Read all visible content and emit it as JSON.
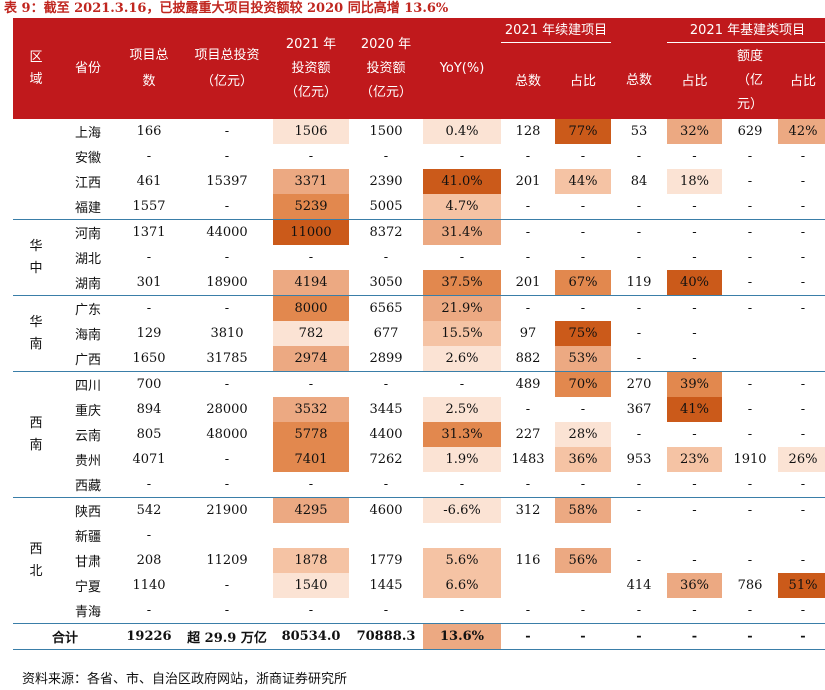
{
  "title": "表 9：截至 2021.3.16，已披露重大项目投资额较 2020 同比高增 13.6%",
  "source": "资料来源：各省、市、自治区政府网站，浙商证券研究所",
  "colors": {
    "header_bg": "#c0191c",
    "title_color": "#c0261f",
    "heat_levels": [
      "transparent",
      "#fbe3d4",
      "#f5c3a4",
      "#eca982",
      "#e2884e",
      "#cb5a1a"
    ]
  },
  "header": {
    "region": "区域",
    "province": "省份",
    "project_count": "项目总数",
    "total_investment": "项目总投资（亿元）",
    "inv_2021": "2021 年投资额（亿元）",
    "inv_2020": "2020 年投资额（亿元）",
    "yoy": "YoY(%)",
    "group_continuing": "2021 年续建项目",
    "group_infra": "2021 年基建类项目",
    "cont_count": "总数",
    "cont_share": "占比",
    "infra_count": "总数",
    "infra_share": "占比",
    "infra_amount": "额度（亿元）",
    "infra_amount_share": "占比"
  },
  "groups": [
    {
      "region": "",
      "rows": [
        {
          "province": "上海",
          "cells": [
            "166",
            "-",
            "1506",
            "1500",
            "0.4%",
            "128",
            "77%",
            "53",
            "32%",
            "629",
            "42%"
          ],
          "heat": [
            0,
            0,
            1,
            0,
            1,
            0,
            5,
            0,
            3,
            0,
            3
          ]
        },
        {
          "province": "安徽",
          "cells": [
            "-",
            "-",
            "-",
            "-",
            "-",
            "-",
            "-",
            "-",
            "-",
            "-",
            "-"
          ],
          "heat": [
            0,
            0,
            0,
            0,
            0,
            0,
            0,
            0,
            0,
            0,
            0
          ]
        },
        {
          "province": "江西",
          "cells": [
            "461",
            "15397",
            "3371",
            "2390",
            "41.0%",
            "201",
            "44%",
            "84",
            "18%",
            "-",
            "-"
          ],
          "heat": [
            0,
            0,
            3,
            0,
            5,
            0,
            2,
            0,
            1,
            0,
            0
          ]
        },
        {
          "province": "福建",
          "cells": [
            "1557",
            "-",
            "5239",
            "5005",
            "4.7%",
            "-",
            "-",
            "-",
            "-",
            "-",
            "-"
          ],
          "heat": [
            0,
            0,
            4,
            0,
            2,
            0,
            0,
            0,
            0,
            0,
            0
          ]
        }
      ]
    },
    {
      "region": "华中",
      "rows": [
        {
          "province": "河南",
          "cells": [
            "1371",
            "44000",
            "11000",
            "8372",
            "31.4%",
            "-",
            "-",
            "-",
            "-",
            "-",
            "-"
          ],
          "heat": [
            0,
            0,
            5,
            0,
            3,
            0,
            0,
            0,
            0,
            0,
            0
          ]
        },
        {
          "province": "湖北",
          "cells": [
            "-",
            "-",
            "-",
            "-",
            "-",
            "-",
            "-",
            "-",
            "-",
            "-",
            "-"
          ],
          "heat": [
            0,
            0,
            0,
            0,
            0,
            0,
            0,
            0,
            0,
            0,
            0
          ]
        },
        {
          "province": "湖南",
          "cells": [
            "301",
            "18900",
            "4194",
            "3050",
            "37.5%",
            "201",
            "67%",
            "119",
            "40%",
            "-",
            "-"
          ],
          "heat": [
            0,
            0,
            3,
            0,
            4,
            0,
            4,
            0,
            5,
            0,
            0
          ]
        }
      ]
    },
    {
      "region": "华南",
      "rows": [
        {
          "province": "广东",
          "cells": [
            "-",
            "-",
            "8000",
            "6565",
            "21.9%",
            "-",
            "-",
            "-",
            "-",
            "-",
            "-"
          ],
          "heat": [
            0,
            0,
            4,
            0,
            3,
            0,
            0,
            0,
            0,
            0,
            0
          ]
        },
        {
          "province": "海南",
          "cells": [
            "129",
            "3810",
            "782",
            "677",
            "15.5%",
            "97",
            "75%",
            "-",
            "-",
            "",
            ""
          ],
          "heat": [
            0,
            0,
            1,
            0,
            2,
            0,
            5,
            0,
            0,
            0,
            0
          ]
        },
        {
          "province": "广西",
          "cells": [
            "1650",
            "31785",
            "2974",
            "2899",
            "2.6%",
            "882",
            "53%",
            "-",
            "-",
            "",
            ""
          ],
          "heat": [
            0,
            0,
            3,
            0,
            1,
            0,
            3,
            0,
            0,
            0,
            0
          ]
        }
      ]
    },
    {
      "region": "西南",
      "rows": [
        {
          "province": "四川",
          "cells": [
            "700",
            "-",
            "-",
            "-",
            "-",
            "489",
            "70%",
            "270",
            "39%",
            "-",
            "-"
          ],
          "heat": [
            0,
            0,
            0,
            0,
            0,
            0,
            4,
            0,
            4,
            0,
            0
          ]
        },
        {
          "province": "重庆",
          "cells": [
            "894",
            "28000",
            "3532",
            "3445",
            "2.5%",
            "-",
            "-",
            "367",
            "41%",
            "-",
            "-"
          ],
          "heat": [
            0,
            0,
            3,
            0,
            1,
            0,
            0,
            0,
            5,
            0,
            0
          ]
        },
        {
          "province": "云南",
          "cells": [
            "805",
            "48000",
            "5778",
            "4400",
            "31.3%",
            "227",
            "28%",
            "-",
            "-",
            "-",
            "-"
          ],
          "heat": [
            0,
            0,
            4,
            0,
            4,
            0,
            1,
            0,
            0,
            0,
            0
          ]
        },
        {
          "province": "贵州",
          "cells": [
            "4071",
            "-",
            "7401",
            "7262",
            "1.9%",
            "1483",
            "36%",
            "953",
            "23%",
            "1910",
            "26%"
          ],
          "heat": [
            0,
            0,
            4,
            0,
            1,
            0,
            2,
            0,
            2,
            0,
            1
          ]
        },
        {
          "province": "西藏",
          "cells": [
            "-",
            "-",
            "-",
            "-",
            "-",
            "-",
            "-",
            "-",
            "-",
            "-",
            "-"
          ],
          "heat": [
            0,
            0,
            0,
            0,
            0,
            0,
            0,
            0,
            0,
            0,
            0
          ]
        }
      ]
    },
    {
      "region": "西北",
      "rows": [
        {
          "province": "陕西",
          "cells": [
            "542",
            "21900",
            "4295",
            "4600",
            "-6.6%",
            "312",
            "58%",
            "-",
            "-",
            "-",
            "-"
          ],
          "heat": [
            0,
            0,
            3,
            0,
            1,
            0,
            3,
            0,
            0,
            0,
            0
          ]
        },
        {
          "province": "新疆",
          "cells": [
            "-",
            "",
            "",
            "",
            "",
            "",
            "",
            "",
            "",
            "",
            ""
          ],
          "heat": [
            0,
            0,
            0,
            0,
            0,
            0,
            0,
            0,
            0,
            0,
            0
          ]
        },
        {
          "province": "甘肃",
          "cells": [
            "208",
            "11209",
            "1878",
            "1779",
            "5.6%",
            "116",
            "56%",
            "-",
            "-",
            "-",
            "-"
          ],
          "heat": [
            0,
            0,
            2,
            0,
            2,
            0,
            3,
            0,
            0,
            0,
            0
          ]
        },
        {
          "province": "宁夏",
          "cells": [
            "1140",
            "-",
            "1540",
            "1445",
            "6.6%",
            "",
            "",
            "414",
            "36%",
            "786",
            "51%"
          ],
          "heat": [
            0,
            0,
            1,
            0,
            2,
            0,
            0,
            0,
            3,
            0,
            5
          ]
        },
        {
          "province": "青海",
          "cells": [
            "-",
            "-",
            "-",
            "-",
            "-",
            "-",
            "-",
            "-",
            "-",
            "-",
            "-"
          ],
          "heat": [
            0,
            0,
            0,
            0,
            0,
            0,
            0,
            0,
            0,
            0,
            0
          ]
        }
      ]
    }
  ],
  "total": {
    "label": "合计",
    "cells": [
      "19226",
      "超 29.9 万亿",
      "80534.0",
      "70888.3",
      "13.6%",
      "-",
      "-",
      "-",
      "-",
      "-",
      "-"
    ],
    "heat": [
      0,
      0,
      0,
      0,
      3,
      0,
      0,
      0,
      0,
      0,
      0
    ]
  }
}
